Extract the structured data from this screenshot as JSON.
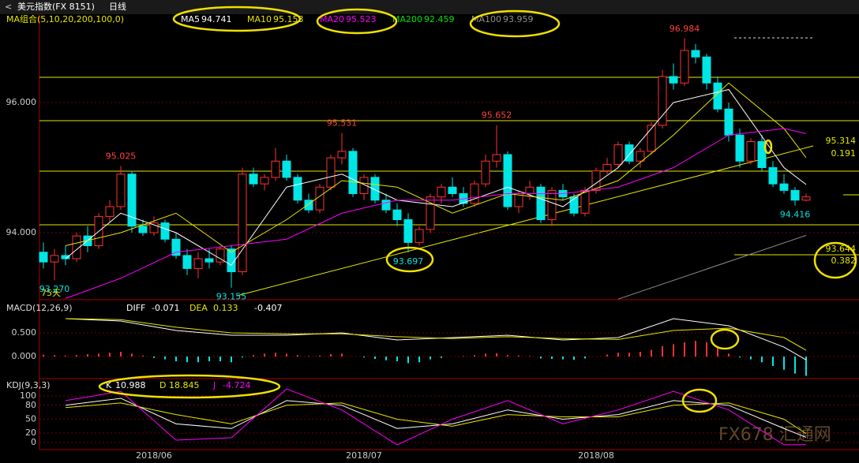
{
  "chart_data": {
    "type": "candlestick",
    "window_title": "美元指数(FX 8151)",
    "period": "日线",
    "ma_header": "MA组合(5,10,20,200,100,0)",
    "ylim": [
      92.97,
      97.333
    ],
    "yticks": [
      {
        "value": 96,
        "label": "96.000"
      },
      {
        "value": 94,
        "label": "94.000"
      }
    ],
    "categories": [
      null,
      null,
      null,
      null,
      null,
      null,
      null,
      null,
      null,
      null,
      "2018/06",
      null,
      null,
      null,
      null,
      null,
      null,
      null,
      null,
      null,
      null,
      null,
      null,
      null,
      null,
      null,
      null,
      null,
      null,
      "2018/07",
      null,
      null,
      null,
      null,
      null,
      null,
      null,
      null,
      null,
      null,
      null,
      null,
      null,
      null,
      null,
      null,
      null,
      null,
      null,
      null,
      "2018/08",
      null,
      null,
      null,
      null,
      null,
      null,
      null,
      null,
      null,
      null,
      null,
      null,
      null,
      null,
      null,
      null,
      null,
      null,
      null
    ],
    "candles": [
      [
        93.7,
        93.85,
        93.45,
        93.55
      ],
      [
        93.55,
        93.75,
        93.27,
        93.65
      ],
      [
        93.65,
        93.8,
        93.5,
        93.6
      ],
      [
        93.6,
        94.0,
        93.55,
        93.95
      ],
      [
        93.95,
        94.1,
        93.7,
        93.8
      ],
      [
        93.8,
        94.3,
        93.75,
        94.25
      ],
      [
        94.25,
        94.5,
        94.15,
        94.4
      ],
      [
        94.4,
        95.025,
        94.35,
        94.9
      ],
      [
        94.9,
        94.95,
        94.0,
        94.1
      ],
      [
        94.1,
        94.2,
        93.95,
        94.0
      ],
      [
        94.0,
        94.25,
        93.95,
        94.15
      ],
      [
        94.15,
        94.2,
        93.85,
        93.9
      ],
      [
        93.9,
        94.0,
        93.6,
        93.65
      ],
      [
        93.65,
        93.75,
        93.35,
        93.45
      ],
      [
        93.45,
        93.7,
        93.3,
        93.6
      ],
      [
        93.6,
        93.75,
        93.45,
        93.55
      ],
      [
        93.55,
        93.8,
        93.5,
        93.75
      ],
      [
        93.75,
        93.8,
        93.155,
        93.4
      ],
      [
        93.4,
        95.0,
        93.35,
        94.9
      ],
      [
        94.9,
        95.0,
        94.7,
        94.75
      ],
      [
        94.75,
        94.9,
        94.65,
        94.85
      ],
      [
        94.85,
        95.3,
        94.8,
        95.1
      ],
      [
        95.1,
        95.2,
        94.8,
        94.85
      ],
      [
        94.85,
        94.9,
        94.45,
        94.5
      ],
      [
        94.5,
        94.6,
        94.3,
        94.35
      ],
      [
        94.35,
        94.75,
        94.3,
        94.7
      ],
      [
        94.7,
        95.2,
        94.65,
        95.15
      ],
      [
        95.15,
        95.531,
        95.05,
        95.25
      ],
      [
        95.25,
        95.3,
        94.55,
        94.6
      ],
      [
        94.6,
        94.9,
        94.5,
        94.85
      ],
      [
        94.85,
        94.9,
        94.45,
        94.5
      ],
      [
        94.5,
        94.6,
        94.3,
        94.35
      ],
      [
        94.35,
        94.45,
        94.1,
        94.2
      ],
      [
        94.2,
        94.3,
        93.697,
        93.85
      ],
      [
        93.85,
        94.1,
        93.8,
        94.05
      ],
      [
        94.05,
        94.6,
        94.0,
        94.55
      ],
      [
        94.55,
        94.75,
        94.45,
        94.7
      ],
      [
        94.7,
        94.85,
        94.55,
        94.6
      ],
      [
        94.6,
        94.7,
        94.4,
        94.45
      ],
      [
        94.45,
        94.8,
        94.4,
        94.75
      ],
      [
        94.75,
        95.2,
        94.7,
        95.1
      ],
      [
        95.1,
        95.652,
        95.0,
        95.2
      ],
      [
        95.2,
        95.25,
        94.35,
        94.4
      ],
      [
        94.4,
        94.65,
        94.3,
        94.6
      ],
      [
        94.6,
        94.8,
        94.5,
        94.7
      ],
      [
        94.7,
        94.75,
        94.15,
        94.2
      ],
      [
        94.2,
        94.7,
        94.1,
        94.65
      ],
      [
        94.65,
        94.75,
        94.5,
        94.55
      ],
      [
        94.55,
        94.6,
        94.25,
        94.3
      ],
      [
        94.3,
        94.7,
        94.25,
        94.65
      ],
      [
        94.65,
        95.0,
        94.6,
        94.95
      ],
      [
        94.95,
        95.15,
        94.9,
        95.05
      ],
      [
        95.05,
        95.4,
        95.0,
        95.35
      ],
      [
        95.35,
        95.4,
        95.05,
        95.1
      ],
      [
        95.1,
        95.3,
        95.0,
        95.25
      ],
      [
        95.25,
        95.7,
        95.2,
        95.65
      ],
      [
        95.65,
        96.5,
        95.6,
        96.4
      ],
      [
        96.4,
        96.6,
        96.2,
        96.3
      ],
      [
        96.3,
        96.984,
        96.25,
        96.8
      ],
      [
        96.8,
        96.9,
        96.6,
        96.7
      ],
      [
        96.7,
        96.75,
        96.2,
        96.3
      ],
      [
        96.3,
        96.4,
        95.85,
        95.9
      ],
      [
        95.9,
        96.0,
        95.4,
        95.5
      ],
      [
        95.5,
        95.6,
        95.0,
        95.1
      ],
      [
        95.1,
        95.45,
        95.05,
        95.4
      ],
      [
        95.4,
        95.5,
        94.95,
        95.0
      ],
      [
        95.0,
        95.1,
        94.7,
        94.75
      ],
      [
        94.75,
        94.9,
        94.6,
        94.65
      ],
      [
        94.65,
        94.7,
        94.416,
        94.5
      ],
      [
        94.5,
        94.6,
        94.48,
        94.55
      ]
    ],
    "high_labels": [
      96.984,
      95.531,
      95.652,
      95.025
    ],
    "low_labels": [
      {
        "value": 93.27,
        "label": "93.270"
      },
      93.155,
      93.697,
      94.416
    ],
    "ma_series": [
      {
        "name": "MA5",
        "value": 94.741,
        "color": "#ffffff",
        "idx": [
          2,
          7,
          12,
          17,
          22,
          27,
          32,
          37,
          42,
          47,
          52,
          57,
          62,
          67,
          69
        ],
        "values": [
          93.6,
          94.3,
          94.0,
          93.5,
          94.7,
          94.9,
          94.5,
          94.4,
          94.7,
          94.4,
          95.0,
          96.0,
          96.2,
          95.0,
          94.741
        ]
      },
      {
        "name": "MA10",
        "value": 95.153,
        "color": "#e6e600",
        "idx": [
          2,
          7,
          12,
          17,
          22,
          27,
          32,
          37,
          42,
          47,
          52,
          57,
          62,
          67,
          69
        ],
        "values": [
          93.8,
          94.0,
          94.3,
          93.7,
          94.2,
          94.8,
          94.7,
          94.3,
          94.6,
          94.5,
          94.8,
          95.5,
          96.3,
          95.6,
          95.153
        ]
      },
      {
        "name": "MA20",
        "value": 95.523,
        "color": "#ff00ff",
        "idx": [
          2,
          7,
          12,
          17,
          22,
          27,
          32,
          37,
          42,
          47,
          52,
          57,
          62,
          67,
          69
        ],
        "values": [
          92.99,
          93.3,
          93.7,
          93.8,
          93.9,
          94.3,
          94.5,
          94.5,
          94.6,
          94.6,
          94.7,
          95.0,
          95.5,
          95.6,
          95.523
        ]
      },
      {
        "name": "MA200",
        "value": 92.459,
        "color": "#00e600",
        "idx": [],
        "values": []
      },
      {
        "name": "MA100",
        "value": 93.959,
        "color": "#909090",
        "idx": [
          52,
          69
        ],
        "values": [
          92.98,
          93.959
        ]
      }
    ],
    "right_labels": [
      95.314,
      0.191,
      93.644,
      0.382
    ],
    "sub_label": "75天",
    "macd": {
      "title": "MACD(12,26,9)",
      "diff_label": "DIFF",
      "diff": -0.071,
      "dea_label": "DEA",
      "dea": 0.133,
      "macd": -0.407,
      "ylim": [
        -0.433,
        1.167
      ],
      "yticks": [
        {
          "value": 0.5,
          "label": "0.500"
        },
        {
          "value": 0,
          "label": "0.000"
        }
      ],
      "hist": [
        0.04,
        0.03,
        0.02,
        0.03,
        0.05,
        0.06,
        0.08,
        0.1,
        0.06,
        0.02,
        -0.03,
        -0.06,
        -0.1,
        -0.12,
        -0.12,
        -0.1,
        -0.1,
        -0.12,
        -0.02,
        0.03,
        0.06,
        0.08,
        0.06,
        0.03,
        0.01,
        0.02,
        0.05,
        0.06,
        0.0,
        -0.02,
        -0.05,
        -0.08,
        -0.1,
        -0.14,
        -0.12,
        -0.06,
        -0.03,
        0.0,
        0.01,
        0.03,
        0.06,
        0.07,
        0.03,
        0.02,
        0.01,
        -0.04,
        -0.05,
        -0.06,
        -0.07,
        -0.04,
        0.0,
        0.04,
        0.08,
        0.08,
        0.1,
        0.14,
        0.22,
        0.26,
        0.3,
        0.33,
        0.3,
        0.2,
        0.06,
        -0.02,
        -0.06,
        -0.12,
        -0.2,
        -0.28,
        -0.36,
        -0.407
      ],
      "lines": [
        {
          "color": "#ffffff",
          "idx": [
            2,
            7,
            12,
            17,
            22,
            27,
            32,
            37,
            42,
            47,
            52,
            57,
            62,
            67,
            69
          ],
          "values": [
            0.8,
            0.75,
            0.55,
            0.45,
            0.45,
            0.5,
            0.35,
            0.4,
            0.45,
            0.35,
            0.4,
            0.8,
            0.65,
            0.2,
            -0.071
          ]
        },
        {
          "color": "#e6e600",
          "idx": [
            2,
            7,
            12,
            17,
            22,
            27,
            32,
            37,
            42,
            47,
            52,
            57,
            62,
            67,
            69
          ],
          "values": [
            0.8,
            0.78,
            0.62,
            0.5,
            0.48,
            0.48,
            0.42,
            0.38,
            0.42,
            0.38,
            0.36,
            0.55,
            0.6,
            0.4,
            0.133
          ]
        }
      ]
    },
    "kdj": {
      "title": "KDJ(9,3,3)",
      "ylim": [
        -12,
        134
      ],
      "yticks": [
        100,
        80,
        50,
        20,
        0
      ],
      "series": [
        {
          "name": "K",
          "value": 10.988,
          "color": "#ffffff",
          "idx": [
            2,
            7,
            12,
            17,
            22,
            27,
            32,
            37,
            42,
            47,
            52,
            57,
            62,
            67,
            69
          ],
          "values": [
            80,
            95,
            40,
            30,
            90,
            80,
            30,
            40,
            70,
            50,
            60,
            90,
            80,
            30,
            10.988
          ]
        },
        {
          "name": "D",
          "value": 18.845,
          "color": "#e6e600",
          "idx": [
            2,
            7,
            12,
            17,
            22,
            27,
            32,
            37,
            42,
            47,
            52,
            57,
            62,
            67,
            69
          ],
          "values": [
            75,
            85,
            60,
            40,
            80,
            85,
            50,
            35,
            60,
            55,
            55,
            80,
            85,
            50,
            18.845
          ]
        },
        {
          "name": "J",
          "value": -4.724,
          "color": "#ff00ff",
          "idx": [
            2,
            7,
            12,
            17,
            22,
            27,
            32,
            37,
            42,
            47,
            52,
            57,
            62,
            67,
            69
          ],
          "values": [
            90,
            110,
            5,
            10,
            115,
            70,
            -5,
            50,
            90,
            40,
            70,
            110,
            70,
            -5,
            -4.724
          ]
        }
      ]
    },
    "watermark": "FX678 汇通网"
  }
}
